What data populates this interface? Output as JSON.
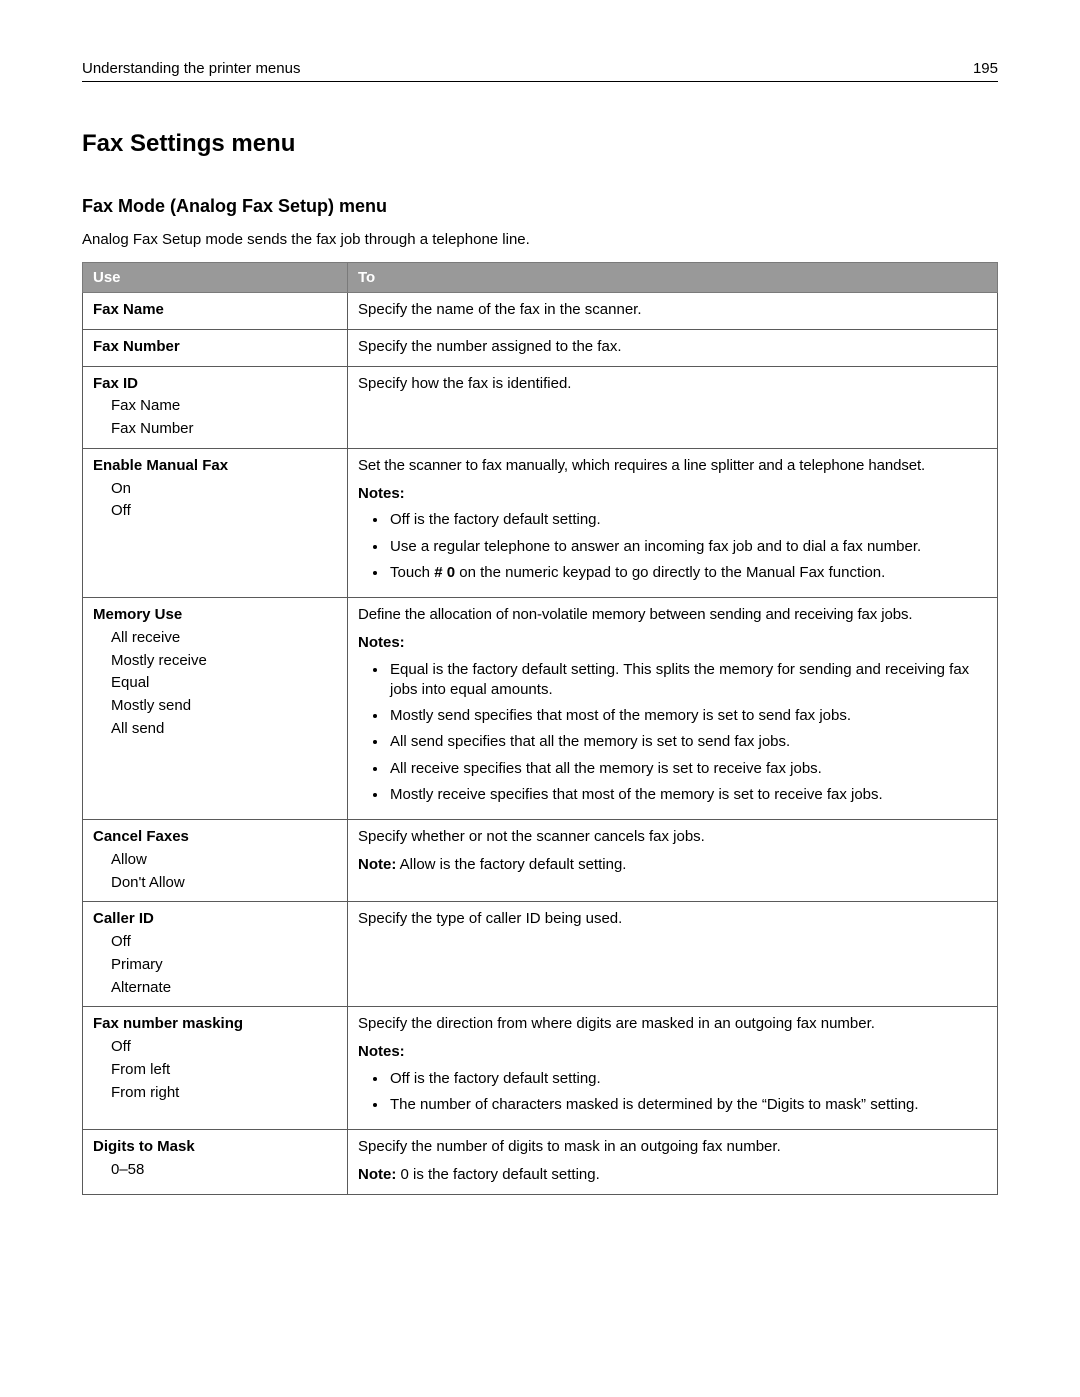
{
  "header": {
    "title": "Understanding the printer menus",
    "page_number": "195"
  },
  "main_title": "Fax Settings menu",
  "sub_title": "Fax Mode (Analog Fax Setup) menu",
  "intro": "Analog Fax Setup mode sends the fax job through a telephone line.",
  "table": {
    "col_use": "Use",
    "col_to": "To",
    "rows": {
      "fax_name": {
        "name": "Fax Name",
        "desc": "Specify the name of the fax in the scanner."
      },
      "fax_number": {
        "name": "Fax Number",
        "desc": "Specify the number assigned to the fax."
      },
      "fax_id": {
        "name": "Fax ID",
        "values": [
          "Fax Name",
          "Fax Number"
        ],
        "desc": "Specify how the fax is identified."
      },
      "enable_manual_fax": {
        "name": "Enable Manual Fax",
        "values": [
          "On",
          "Off"
        ],
        "desc": "Set the scanner to fax manually, which requires a line splitter and a telephone handset.",
        "notes_label": "Notes:",
        "notes": [
          "Off is the factory default setting.",
          "Use a regular telephone to answer an incoming fax job and to dial a fax number."
        ],
        "note_touch_pre": "Touch ",
        "note_touch_bold": "# 0",
        "note_touch_post": " on the numeric keypad to go directly to the Manual Fax function."
      },
      "memory_use": {
        "name": "Memory Use",
        "values": [
          "All receive",
          "Mostly receive",
          "Equal",
          "Mostly send",
          "All send"
        ],
        "desc": "Define the allocation of non-volatile memory between sending and receiving fax jobs.",
        "notes_label": "Notes:",
        "notes": [
          "Equal is the factory default setting. This splits the memory for sending and receiving fax jobs into equal amounts.",
          "Mostly send specifies that most of the memory is set to send fax jobs.",
          "All send specifies that all the memory is set to send fax jobs.",
          "All receive specifies that all the memory is set to receive fax jobs.",
          "Mostly receive specifies that most of the memory is set to receive fax jobs."
        ]
      },
      "cancel_faxes": {
        "name": "Cancel Faxes",
        "values": [
          "Allow",
          "Don't Allow"
        ],
        "desc": "Specify whether or not the scanner cancels fax jobs.",
        "note_label": "Note:",
        "note_text": " Allow is the factory default setting."
      },
      "caller_id": {
        "name": "Caller ID",
        "values": [
          "Off",
          "Primary",
          "Alternate"
        ],
        "desc": "Specify the type of caller ID being used."
      },
      "fax_number_masking": {
        "name": "Fax number masking",
        "values": [
          "Off",
          "From left",
          "From right"
        ],
        "desc": "Specify the direction from where digits are masked in an outgoing fax number.",
        "notes_label": "Notes:",
        "notes": [
          "Off is the factory default setting.",
          "The number of characters masked is determined by the “Digits to mask” setting."
        ]
      },
      "digits_to_mask": {
        "name": "Digits to Mask",
        "values": [
          "0–58"
        ],
        "desc": "Specify the number of digits to mask in an outgoing fax number.",
        "note_label": "Note:",
        "note_text": " 0 is the factory default setting."
      }
    }
  }
}
